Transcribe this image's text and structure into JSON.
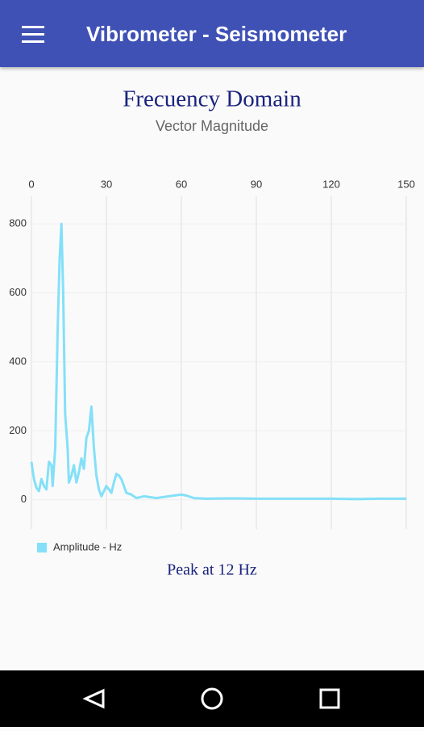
{
  "app_bar": {
    "title": "Vibrometer - Seismometer"
  },
  "chart_data": {
    "type": "line",
    "title": "Frecuency Domain",
    "subtitle": "Vector Magnitude",
    "x": [
      0,
      1,
      2,
      3,
      4,
      5,
      6,
      7,
      8,
      8.5,
      9.5,
      10.5,
      11.3,
      12,
      12.7,
      13.5,
      14.5,
      15,
      16,
      17,
      18,
      19,
      20,
      21,
      22,
      23,
      24,
      25,
      26,
      27,
      28,
      30,
      32,
      33,
      34,
      35,
      36,
      38,
      40,
      42,
      45,
      50,
      55,
      60,
      62,
      65,
      70,
      80,
      90,
      100,
      110,
      120,
      130,
      140,
      150
    ],
    "series": [
      {
        "name": "Amplitude - Hz",
        "color": "#84e0f8",
        "values": [
          110,
          60,
          35,
          25,
          60,
          40,
          30,
          110,
          100,
          40,
          150,
          500,
          700,
          800,
          600,
          250,
          150,
          50,
          70,
          100,
          50,
          80,
          120,
          90,
          180,
          200,
          270,
          150,
          70,
          30,
          10,
          40,
          20,
          50,
          75,
          70,
          60,
          20,
          15,
          5,
          10,
          5,
          10,
          15,
          12,
          5,
          3,
          4,
          3,
          3,
          3,
          3,
          2,
          3,
          3
        ]
      }
    ],
    "xlim": [
      0,
      150
    ],
    "xticks": [
      0,
      30,
      60,
      90,
      120,
      150
    ],
    "ylim": [
      -85,
      880
    ],
    "yticks": [
      0,
      200,
      400,
      600,
      800
    ],
    "grid": true,
    "legend": "bottom-left",
    "annotation": "Peak at 12 Hz"
  }
}
